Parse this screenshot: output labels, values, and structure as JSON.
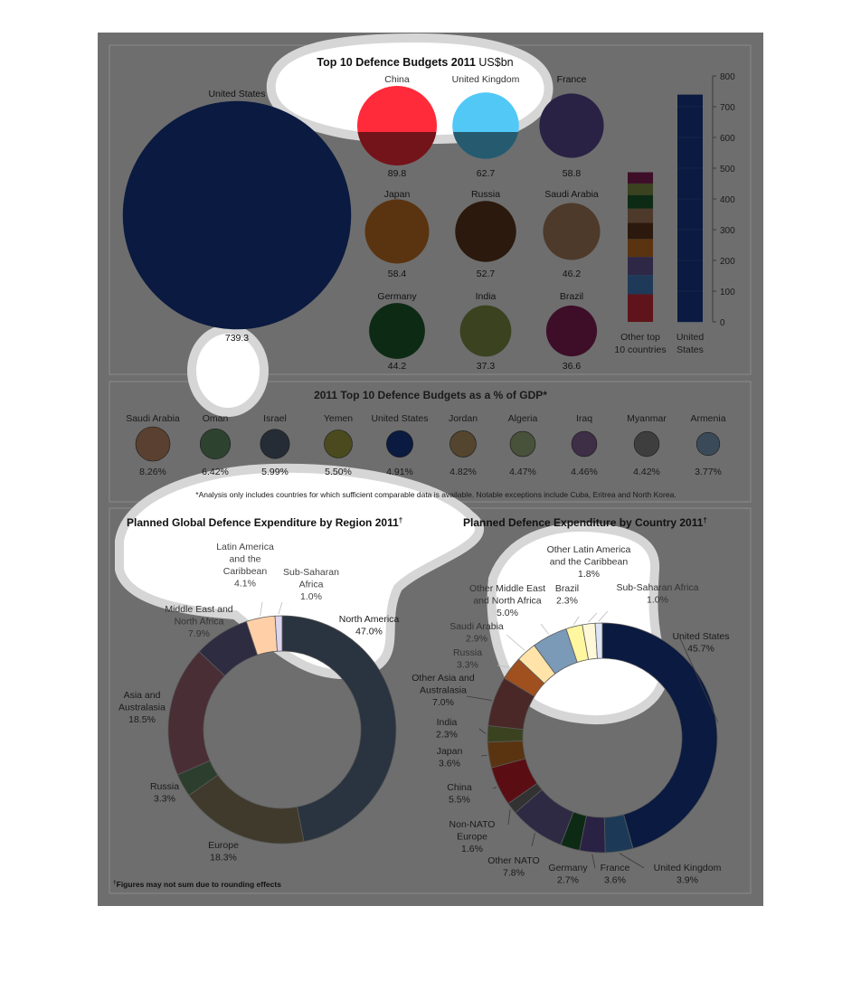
{
  "panel1": {
    "title_bold": "Top 10 Defence Budgets 2011",
    "title_unit": "US$bn",
    "us": {
      "name": "United States",
      "value_label": "739.3",
      "value": 739.3,
      "color": "#0a1a40"
    },
    "countries": [
      {
        "name": "China",
        "value_label": "89.8",
        "value": 89.8,
        "color": "#ff2b3a"
      },
      {
        "name": "United Kingdom",
        "value_label": "62.7",
        "value": 62.7,
        "color": "#52c8f7"
      },
      {
        "name": "France",
        "value_label": "58.8",
        "value": 58.8,
        "color": "#2a2245"
      },
      {
        "name": "Japan",
        "value_label": "58.4",
        "value": 58.4,
        "color": "#5a3410"
      },
      {
        "name": "Russia",
        "value_label": "52.7",
        "value": 52.7,
        "color": "#2a190c"
      },
      {
        "name": "Saudi Arabia",
        "value_label": "46.2",
        "value": 46.2,
        "color": "#4e3a2a"
      },
      {
        "name": "Germany",
        "value_label": "44.2",
        "value": 44.2,
        "color": "#0c2a14"
      },
      {
        "name": "India",
        "value_label": "37.3",
        "value": 37.3,
        "color": "#3a4220"
      },
      {
        "name": "Brazil",
        "value_label": "36.6",
        "value": 36.6,
        "color": "#3e0e28"
      }
    ],
    "bar_ticks": [
      "0",
      "100",
      "200",
      "300",
      "400",
      "500",
      "600",
      "700",
      "800"
    ],
    "bar_labels": {
      "other": "Other top 10 countries",
      "us": "United States"
    },
    "stack_colors": [
      "#5e141a",
      "#1e3a58",
      "#2e2846",
      "#5a3410",
      "#2a190c",
      "#4e3a2a",
      "#0c2a14",
      "#3a4220",
      "#3e0e28"
    ]
  },
  "panel2": {
    "title": "2011 Top 10 Defence Budgets as a % of GDP*",
    "items": [
      {
        "name": "Saudi Arabia",
        "pct": "8.26%",
        "value": 8.26,
        "color": "#5a4030"
      },
      {
        "name": "Oman",
        "pct": "6.42%",
        "value": 6.42,
        "color": "#2e4230"
      },
      {
        "name": "Israel",
        "pct": "5.99%",
        "value": 5.99,
        "color": "#262c36"
      },
      {
        "name": "Yemen",
        "pct": "5.50%",
        "value": 5.5,
        "color": "#4a4a1e"
      },
      {
        "name": "United States",
        "pct": "4.91%",
        "value": 4.91,
        "color": "#0a1a40"
      },
      {
        "name": "Jordan",
        "pct": "4.82%",
        "value": 4.82,
        "color": "#54452e"
      },
      {
        "name": "Algeria",
        "pct": "4.47%",
        "value": 4.47,
        "color": "#48523a"
      },
      {
        "name": "Iraq",
        "pct": "4.46%",
        "value": 4.46,
        "color": "#3e2e46"
      },
      {
        "name": "Myanmar",
        "pct": "4.42%",
        "value": 4.42,
        "color": "#3e3e3e"
      },
      {
        "name": "Armenia",
        "pct": "3.77%",
        "value": 3.77,
        "color": "#3a4a58"
      }
    ],
    "footnote": "*Analysis only includes countries for which sufficient comparable data is available. Notable exceptions include Cuba, Eritrea and North Korea."
  },
  "panel3": {
    "region_title": "Planned Global Defence Expenditure by Region 2011",
    "region_title_mark": "†",
    "country_title": "Planned Defence Expenditure by Country 2011",
    "country_title_mark": "†",
    "footnote_mark": "†",
    "footnote": "Figures may not sum due to rounding effects"
  },
  "chart_data": [
    {
      "type": "bubble",
      "title": "Top 10 Defence Budgets 2011 US$bn",
      "categories": [
        "United States",
        "China",
        "United Kingdom",
        "France",
        "Japan",
        "Russia",
        "Saudi Arabia",
        "Germany",
        "India",
        "Brazil"
      ],
      "values": [
        739.3,
        89.8,
        62.7,
        58.8,
        58.4,
        52.7,
        46.2,
        44.2,
        37.3,
        36.6
      ]
    },
    {
      "type": "bar",
      "categories": [
        "Other top 10 countries",
        "United States"
      ],
      "values": [
        486.7,
        739.3
      ],
      "ylim": [
        0,
        800
      ]
    },
    {
      "type": "bubble",
      "title": "2011 Top 10 Defence Budgets as a % of GDP*",
      "categories": [
        "Saudi Arabia",
        "Oman",
        "Israel",
        "Yemen",
        "United States",
        "Jordan",
        "Algeria",
        "Iraq",
        "Myanmar",
        "Armenia"
      ],
      "values": [
        8.26,
        6.42,
        5.99,
        5.5,
        4.91,
        4.82,
        4.47,
        4.46,
        4.42,
        3.77
      ]
    },
    {
      "type": "pie",
      "title": "Planned Global Defence Expenditure by Region 2011",
      "slices": [
        {
          "label": "North America",
          "lines": [
            "North America",
            "47.0%"
          ],
          "value": 47.0,
          "color": "#2a3440"
        },
        {
          "label": "Europe",
          "lines": [
            "Europe",
            "18.3%"
          ],
          "value": 18.3,
          "color": "#403a2c"
        },
        {
          "label": "Russia",
          "lines": [
            "Russia",
            "3.3%"
          ],
          "value": 3.3,
          "color": "#2c3e2e"
        },
        {
          "label": "Asia and Australasia",
          "lines": [
            "Asia and",
            "Australasia",
            "18.5%"
          ],
          "value": 18.5,
          "color": "#4a2e36"
        },
        {
          "label": "Middle East and North Africa",
          "lines": [
            "Middle East and",
            "North Africa",
            "7.9%"
          ],
          "value": 7.9,
          "color": "#2e2c40"
        },
        {
          "label": "Latin America and the Caribbean",
          "lines": [
            "Latin America",
            "and the",
            "Caribbean",
            "4.1%"
          ],
          "value": 4.1,
          "color": "#ffd0a8"
        },
        {
          "label": "Sub-Saharan Africa",
          "lines": [
            "Sub-Saharan",
            "Africa",
            "1.0%"
          ],
          "value": 1.0,
          "color": "#ddd4ef"
        }
      ]
    },
    {
      "type": "pie",
      "title": "Planned Defence Expenditure by Country 2011",
      "slices": [
        {
          "label": "United States",
          "lines": [
            "United States",
            "45.7%"
          ],
          "value": 45.7,
          "color": "#0a1a40"
        },
        {
          "label": "United Kingdom",
          "lines": [
            "United Kingdom",
            "3.9%"
          ],
          "value": 3.9,
          "color": "#1c3a58"
        },
        {
          "label": "France",
          "lines": [
            "France",
            "3.6%"
          ],
          "value": 3.6,
          "color": "#2a2245"
        },
        {
          "label": "Germany",
          "lines": [
            "Germany",
            "2.7%"
          ],
          "value": 2.7,
          "color": "#0c2a14"
        },
        {
          "label": "Other NATO",
          "lines": [
            "Other NATO",
            "7.8%"
          ],
          "value": 7.8,
          "color": "#2e2a44"
        },
        {
          "label": "Non-NATO Europe",
          "lines": [
            "Non-NATO",
            "Europe",
            "1.6%"
          ],
          "value": 1.6,
          "color": "#323232"
        },
        {
          "label": "China",
          "lines": [
            "China",
            "5.5%"
          ],
          "value": 5.5,
          "color": "#5a0e14"
        },
        {
          "label": "Japan",
          "lines": [
            "Japan",
            "3.6%"
          ],
          "value": 3.6,
          "color": "#5a3410"
        },
        {
          "label": "India",
          "lines": [
            "India",
            "2.3%"
          ],
          "value": 2.3,
          "color": "#3a4220"
        },
        {
          "label": "Other Asia and Australasia",
          "lines": [
            "Other Asia and",
            "Australasia",
            "7.0%"
          ],
          "value": 7.0,
          "color": "#4a2828"
        },
        {
          "label": "Russia",
          "lines": [
            "Russia",
            "3.3%"
          ],
          "value": 3.3,
          "color": "#a0501e"
        },
        {
          "label": "Saudi Arabia",
          "lines": [
            "Saudi Arabia",
            "2.9%"
          ],
          "value": 2.9,
          "color": "#ffe3a8"
        },
        {
          "label": "Other Middle East and North Africa",
          "lines": [
            "Other Middle East",
            "and North Africa",
            "5.0%"
          ],
          "value": 5.0,
          "color": "#7a9ab8"
        },
        {
          "label": "Brazil",
          "lines": [
            "Brazil",
            "2.3%"
          ],
          "value": 2.3,
          "color": "#fff6a0"
        },
        {
          "label": "Other Latin America and the Caribbean",
          "lines": [
            "Other Latin America",
            "and the Caribbean",
            "1.8%"
          ],
          "value": 1.8,
          "color": "#fff8d8"
        },
        {
          "label": "Sub-Saharan Africa",
          "lines": [
            "Sub-Saharan Africa",
            "1.0%"
          ],
          "value": 1.0,
          "color": "#dde4f4"
        }
      ]
    }
  ]
}
